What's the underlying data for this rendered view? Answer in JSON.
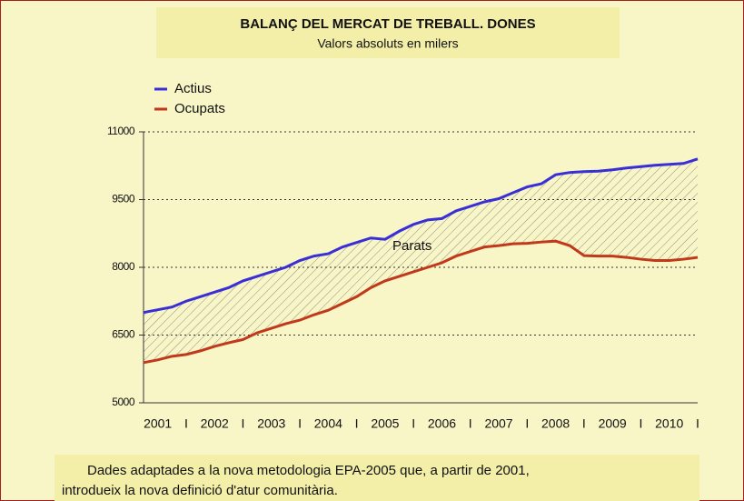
{
  "chart_data": {
    "type": "line",
    "title": "BALANÇ DEL MERCAT DE TREBALL. DONES",
    "subtitle": "Valors absoluts en milers",
    "annotation": "Parats",
    "footnote": [
      "Dades adaptades a la nova metodologia EPA-2005 que, a partir de 2001,",
      "introdueix la nova definició d'atur comunitària."
    ],
    "x": [
      2001.25,
      2001.5,
      2001.75,
      2002,
      2002.25,
      2002.5,
      2002.75,
      2003,
      2003.25,
      2003.5,
      2003.75,
      2004,
      2004.25,
      2004.5,
      2004.75,
      2005,
      2005.25,
      2005.5,
      2005.75,
      2006,
      2006.25,
      2006.5,
      2006.75,
      2007,
      2007.25,
      2007.5,
      2007.75,
      2008,
      2008.25,
      2008.5,
      2008.75,
      2009,
      2009.25,
      2009.5,
      2009.75,
      2010,
      2010.25,
      2010.5,
      2010.75,
      2011
    ],
    "series": [
      {
        "name": "Actius",
        "color": "#3a2fd6",
        "values": [
          7000,
          7060,
          7120,
          7250,
          7350,
          7450,
          7550,
          7700,
          7800,
          7900,
          8000,
          8150,
          8250,
          8300,
          8450,
          8550,
          8650,
          8620,
          8800,
          8950,
          9050,
          9080,
          9250,
          9350,
          9450,
          9520,
          9650,
          9780,
          9850,
          10050,
          10100,
          10120,
          10130,
          10160,
          10200,
          10230,
          10260,
          10280,
          10300,
          10400
        ]
      },
      {
        "name": "Ocupats",
        "color": "#c0391b",
        "values": [
          5890,
          5950,
          6030,
          6070,
          6150,
          6250,
          6330,
          6400,
          6550,
          6650,
          6750,
          6830,
          6950,
          7050,
          7200,
          7350,
          7550,
          7700,
          7800,
          7900,
          8000,
          8100,
          8250,
          8350,
          8450,
          8480,
          8520,
          8530,
          8560,
          8580,
          8480,
          8260,
          8250,
          8250,
          8220,
          8180,
          8150,
          8150,
          8180,
          8220
        ]
      }
    ],
    "xlim": [
      2001.25,
      2011
    ],
    "xticks": [
      {
        "value": 2001.5,
        "label": "2001"
      },
      {
        "value": 2002,
        "label": "I"
      },
      {
        "value": 2002.5,
        "label": "2002"
      },
      {
        "value": 2003,
        "label": "I"
      },
      {
        "value": 2003.5,
        "label": "2003"
      },
      {
        "value": 2004,
        "label": "I"
      },
      {
        "value": 2004.5,
        "label": "2004"
      },
      {
        "value": 2005,
        "label": "I"
      },
      {
        "value": 2005.5,
        "label": "2005"
      },
      {
        "value": 2006,
        "label": "I"
      },
      {
        "value": 2006.5,
        "label": "2006"
      },
      {
        "value": 2007,
        "label": "I"
      },
      {
        "value": 2007.5,
        "label": "2007"
      },
      {
        "value": 2008,
        "label": "I"
      },
      {
        "value": 2008.5,
        "label": "2008"
      },
      {
        "value": 2009,
        "label": "I"
      },
      {
        "value": 2009.5,
        "label": "2009"
      },
      {
        "value": 2010,
        "label": "I"
      },
      {
        "value": 2010.5,
        "label": "2010"
      },
      {
        "value": 2011,
        "label": "I"
      }
    ],
    "ylim": [
      5000,
      11000
    ],
    "yticks": [
      5000,
      6500,
      8000,
      9500,
      11000
    ],
    "grid": true,
    "legend": "top-left"
  }
}
